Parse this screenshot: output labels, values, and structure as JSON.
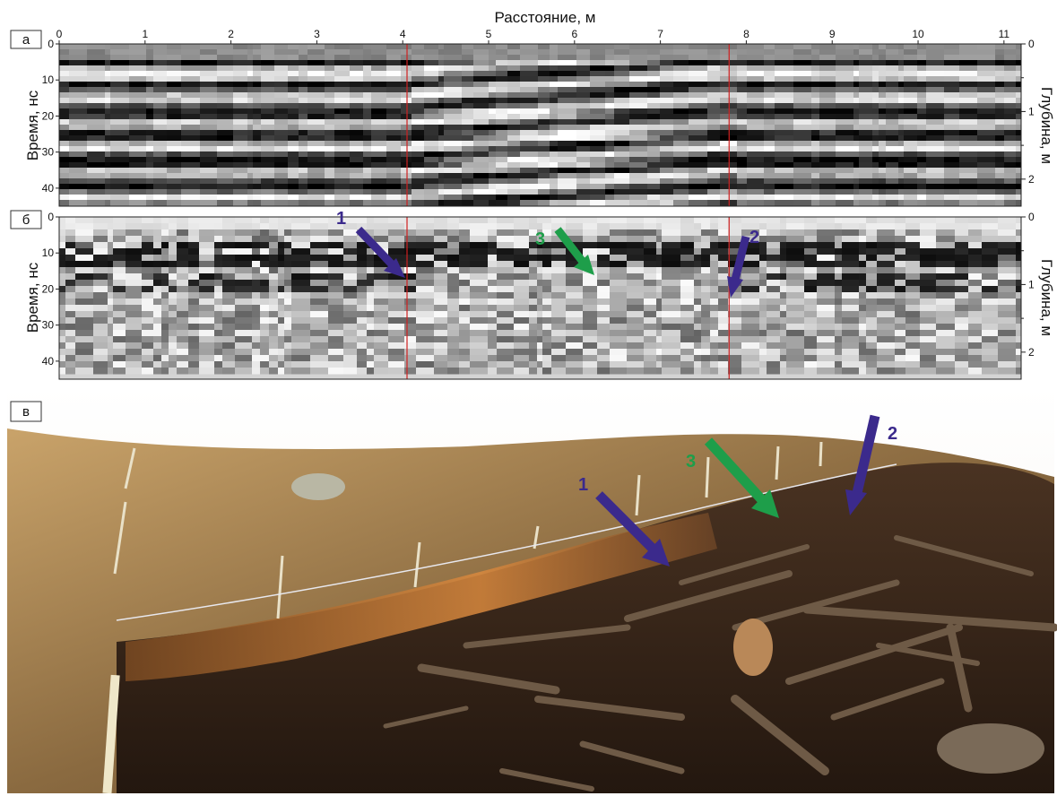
{
  "figure": {
    "distance_axis": {
      "title": "Расстояние, м",
      "ticks": [
        "0",
        "1",
        "2",
        "3",
        "4",
        "5",
        "6",
        "7",
        "8",
        "9",
        "10",
        "11"
      ],
      "range": [
        0,
        11.2
      ]
    },
    "panels": [
      {
        "letter": "а",
        "left_axis_title": "Время, нс",
        "right_axis_title": "Глубина, м",
        "time_ticks": [
          "0",
          "10",
          "20",
          "30",
          "40"
        ],
        "depth_ticks": [
          "0",
          "1",
          "2"
        ],
        "time_range": [
          0,
          45
        ],
        "depth_range": [
          0,
          2.4
        ],
        "marker_lines_m": [
          4.05,
          7.8
        ],
        "arrows": []
      },
      {
        "letter": "б",
        "left_axis_title": "Время, нс",
        "right_axis_title": "Глубина, м",
        "time_ticks": [
          "0",
          "10",
          "20",
          "30",
          "40"
        ],
        "depth_ticks": [
          "0",
          "1",
          "2"
        ],
        "time_range": [
          0,
          45
        ],
        "depth_range": [
          0,
          2.4
        ],
        "marker_lines_m": [
          4.05,
          7.8
        ],
        "arrows": [
          {
            "label": "1",
            "color": "#3b2a8c"
          },
          {
            "label": "3",
            "color": "#1e9e4a"
          },
          {
            "label": "2",
            "color": "#3b2a8c"
          }
        ]
      },
      {
        "letter": "в",
        "arrows": [
          {
            "label": "1",
            "color": "#3b2a8c"
          },
          {
            "label": "3",
            "color": "#1e9e4a"
          },
          {
            "label": "2",
            "color": "#3b2a8c"
          }
        ]
      }
    ],
    "colors": {
      "marker_line": "#d02020",
      "arrow_blue": "#3b2a8c",
      "arrow_green": "#1e9e4a"
    }
  }
}
